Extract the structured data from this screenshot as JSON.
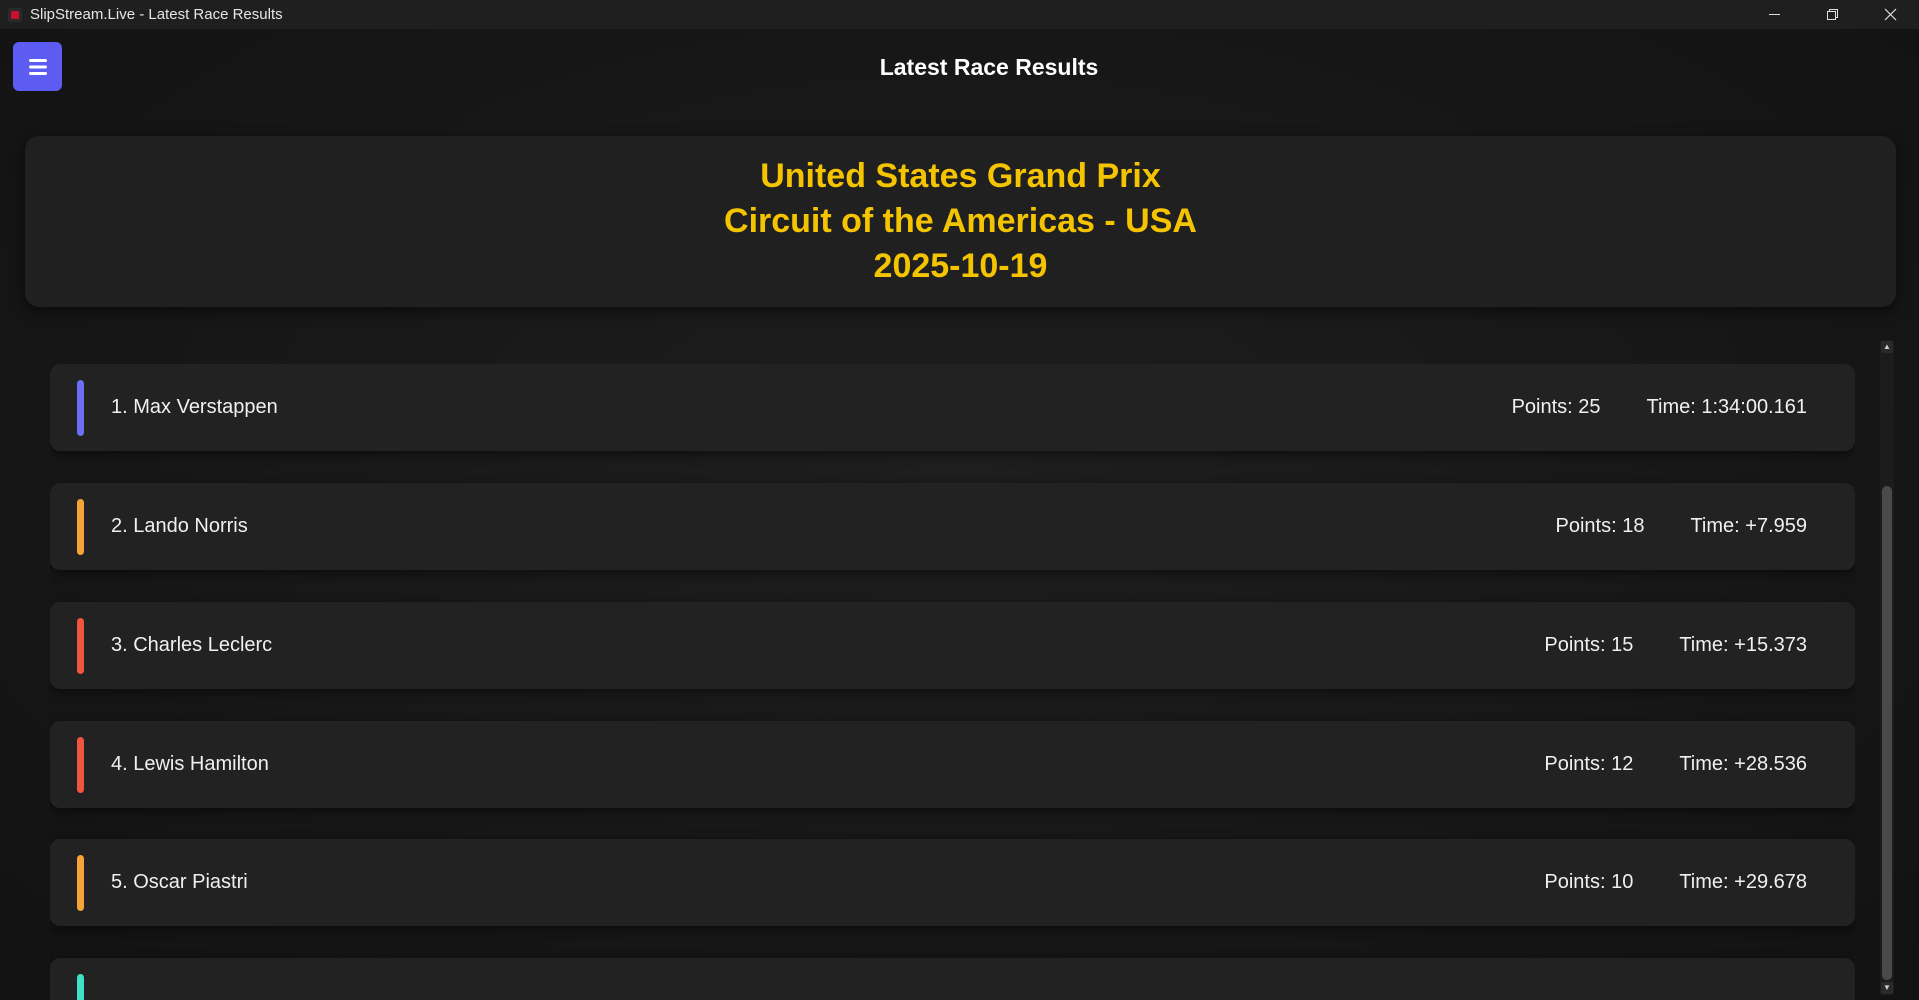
{
  "window": {
    "title": "SlipStream.Live - Latest Race Results",
    "controls": [
      "minimize",
      "restore",
      "close"
    ]
  },
  "header": {
    "title": "Latest Race Results",
    "menu_icon": "hamburger-menu-icon"
  },
  "race": {
    "name": "United States Grand Prix",
    "circuit": "Circuit of the Americas - USA",
    "date": "2025-10-19"
  },
  "results": [
    {
      "label": "1. Max Verstappen",
      "points": "Points: 25",
      "time": "Time: 1:34:00.161",
      "team_color": "#6c6ef5"
    },
    {
      "label": "2. Lando Norris",
      "points": "Points: 18",
      "time": "Time: +7.959",
      "team_color": "#f7a33a"
    },
    {
      "label": "3. Charles Leclerc",
      "points": "Points: 15",
      "time": "Time: +15.373",
      "team_color": "#f0553f"
    },
    {
      "label": "4. Lewis Hamilton",
      "points": "Points: 12",
      "time": "Time: +28.536",
      "team_color": "#f0553f"
    },
    {
      "label": "5. Oscar Piastri",
      "points": "Points: 10",
      "time": "Time: +29.678",
      "team_color": "#f7a33a"
    },
    {
      "label": "",
      "points": "",
      "time": "",
      "team_color": "#3fe0c5"
    }
  ],
  "colors": {
    "accent": "#5d5cf2",
    "race_title": "#f5c400"
  }
}
